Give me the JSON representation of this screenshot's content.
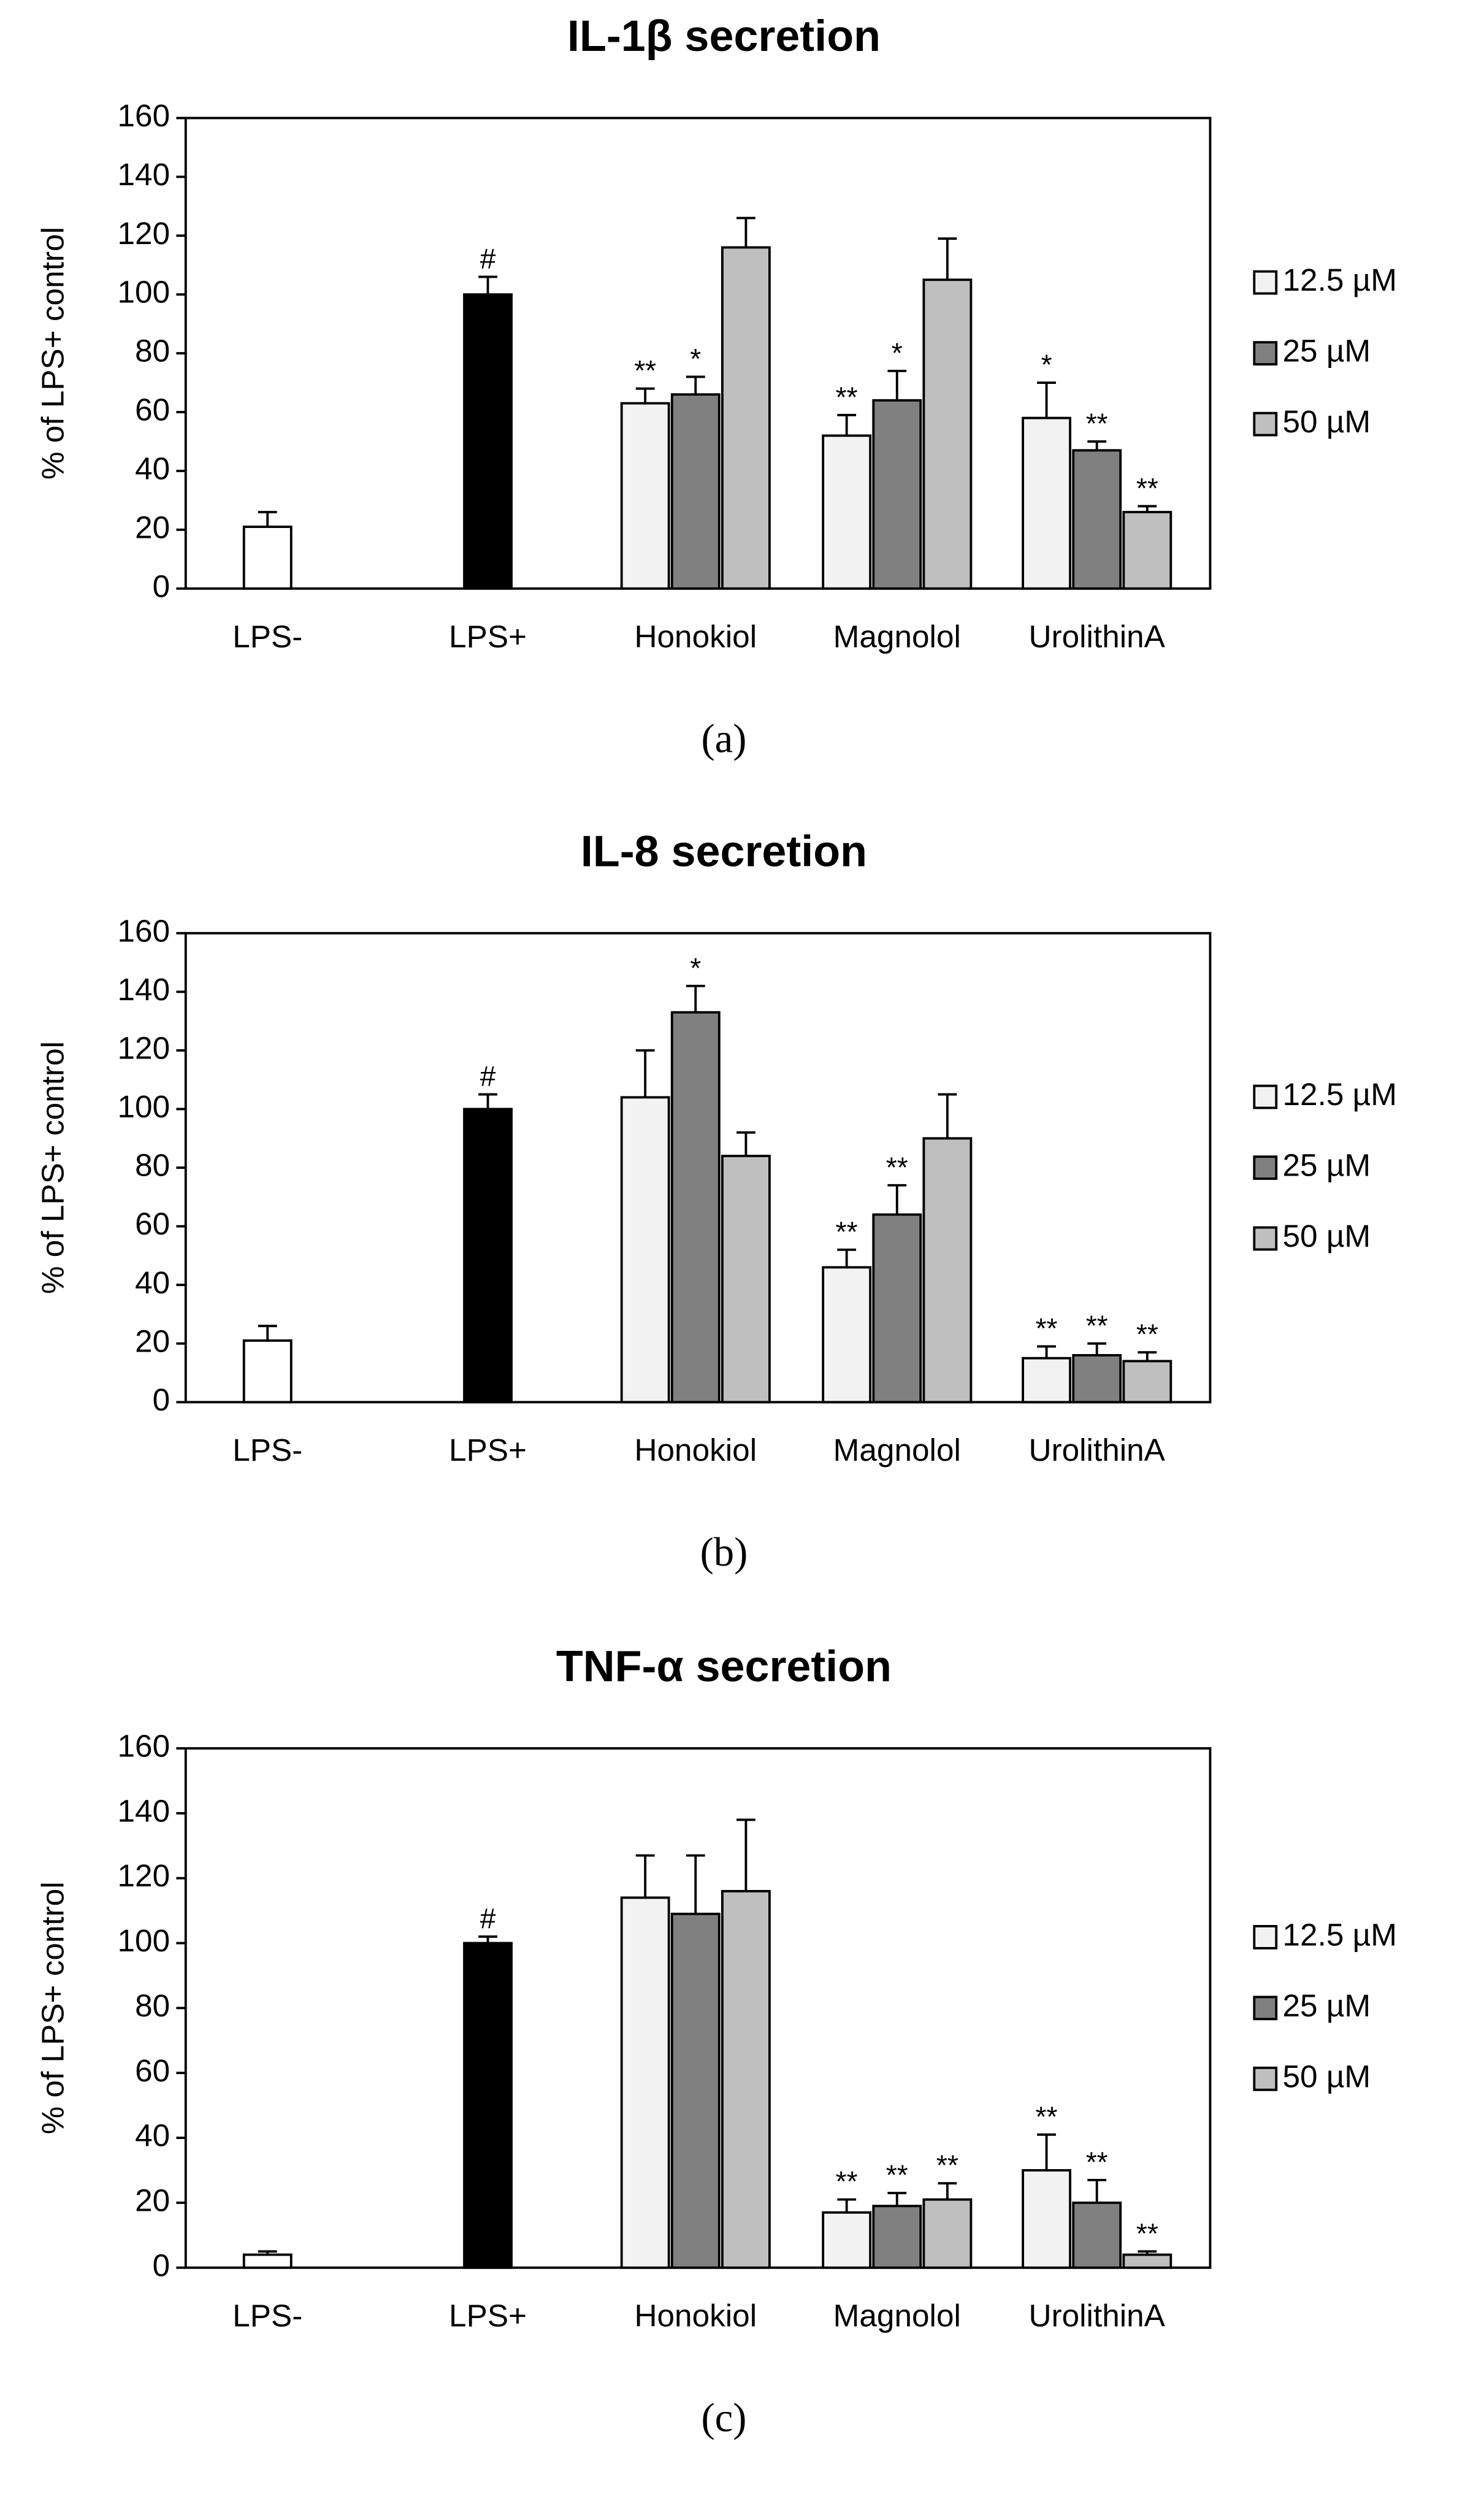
{
  "chart_data": [
    {
      "type": "bar",
      "title": "IL-1β secretion",
      "ylabel": "% of LPS+ control",
      "panel_label": "(a)",
      "categories": [
        "LPS-",
        "LPS+",
        "Honokiol",
        "Magnolol",
        "UrolithinA"
      ],
      "controls": {
        "values": [
          21,
          100
        ],
        "errors": [
          5,
          6
        ],
        "colors": [
          "#ffffff",
          "#000000"
        ],
        "annotations": [
          null,
          "#"
        ]
      },
      "series": [
        {
          "name": "12.5 µM",
          "color": "#f2f2f2",
          "values": [
            null,
            null,
            63,
            52,
            58
          ],
          "errors": [
            null,
            null,
            5,
            7,
            12
          ],
          "annotations": [
            null,
            null,
            "**",
            "**",
            "*"
          ]
        },
        {
          "name": "25 µM",
          "color": "#808080",
          "values": [
            null,
            null,
            66,
            64,
            47
          ],
          "errors": [
            null,
            null,
            6,
            10,
            3
          ],
          "annotations": [
            null,
            null,
            "*",
            "*",
            "**"
          ]
        },
        {
          "name": "50 µM",
          "color": "#bfbfbf",
          "values": [
            null,
            null,
            116,
            105,
            26
          ],
          "errors": [
            null,
            null,
            10,
            14,
            2
          ],
          "annotations": [
            null,
            null,
            null,
            null,
            "**"
          ]
        }
      ],
      "ylim": [
        0,
        160
      ],
      "yticks": [
        0,
        20,
        40,
        60,
        80,
        100,
        120,
        140,
        160
      ],
      "legend": "right"
    },
    {
      "type": "bar",
      "title": "IL-8 secretion",
      "ylabel": "% of LPS+ control",
      "panel_label": "(b)",
      "categories": [
        "LPS-",
        "LPS+",
        "Honokiol",
        "Magnolol",
        "UrolithinA"
      ],
      "controls": {
        "values": [
          21,
          100
        ],
        "errors": [
          5,
          5
        ],
        "colors": [
          "#ffffff",
          "#000000"
        ],
        "annotations": [
          null,
          "#"
        ]
      },
      "series": [
        {
          "name": "12.5 µM",
          "color": "#f2f2f2",
          "values": [
            null,
            null,
            104,
            46,
            15
          ],
          "errors": [
            null,
            null,
            16,
            6,
            4
          ],
          "annotations": [
            null,
            null,
            null,
            "**",
            "**"
          ]
        },
        {
          "name": "25 µM",
          "color": "#808080",
          "values": [
            null,
            null,
            133,
            64,
            16
          ],
          "errors": [
            null,
            null,
            9,
            10,
            4
          ],
          "annotations": [
            null,
            null,
            "*",
            "**",
            "**"
          ]
        },
        {
          "name": "50 µM",
          "color": "#bfbfbf",
          "values": [
            null,
            null,
            84,
            90,
            14
          ],
          "errors": [
            null,
            null,
            8,
            15,
            3
          ],
          "annotations": [
            null,
            null,
            null,
            null,
            "**"
          ]
        }
      ],
      "ylim": [
        0,
        160
      ],
      "yticks": [
        0,
        20,
        40,
        60,
        80,
        100,
        120,
        140,
        160
      ],
      "legend": "right"
    },
    {
      "type": "bar",
      "title": "TNF-α secretion",
      "ylabel": "% of LPS+ control",
      "panel_label": "(c)",
      "categories": [
        "LPS-",
        "LPS+",
        "Honokiol",
        "Magnolol",
        "UrolithinA"
      ],
      "controls": {
        "values": [
          4,
          100
        ],
        "errors": [
          1,
          2
        ],
        "colors": [
          "#ffffff",
          "#000000"
        ],
        "annotations": [
          null,
          "#"
        ]
      },
      "series": [
        {
          "name": "12.5 µM",
          "color": "#f2f2f2",
          "values": [
            null,
            null,
            114,
            17,
            30
          ],
          "errors": [
            null,
            null,
            13,
            4,
            11
          ],
          "annotations": [
            null,
            null,
            null,
            "**",
            "**"
          ]
        },
        {
          "name": "25 µM",
          "color": "#808080",
          "values": [
            null,
            null,
            109,
            19,
            20
          ],
          "errors": [
            null,
            null,
            18,
            4,
            7
          ],
          "annotations": [
            null,
            null,
            null,
            "**",
            "**"
          ]
        },
        {
          "name": "50 µM",
          "color": "#bfbfbf",
          "values": [
            null,
            null,
            116,
            21,
            4
          ],
          "errors": [
            null,
            null,
            22,
            5,
            1
          ],
          "annotations": [
            null,
            null,
            null,
            "**",
            "**"
          ]
        }
      ],
      "ylim": [
        0,
        160
      ],
      "yticks": [
        0,
        20,
        40,
        60,
        80,
        100,
        120,
        140,
        160
      ],
      "legend": "right"
    }
  ]
}
